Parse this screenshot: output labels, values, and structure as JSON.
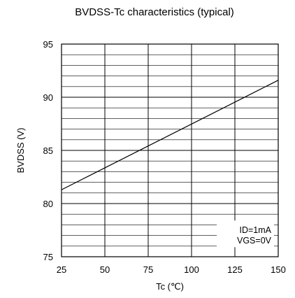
{
  "chart_data": {
    "type": "line",
    "title": "BVDSS-Tc characteristics (typical)",
    "xlabel": "Tc (℃)",
    "ylabel": "BVDSS (V)",
    "xlim": [
      25,
      150
    ],
    "ylim": [
      75,
      95
    ],
    "x_ticks": [
      "25",
      "50",
      "75",
      "100",
      "125",
      "150"
    ],
    "y_ticks": [
      "75",
      "80",
      "85",
      "90",
      "95"
    ],
    "grid": true,
    "series": [
      {
        "x": [
          25,
          150
        ],
        "y": [
          81.3,
          91.6
        ]
      }
    ],
    "annotations": [
      "ID=1mA",
      "VGS=0V"
    ],
    "annotation_position": "bottom-right"
  }
}
